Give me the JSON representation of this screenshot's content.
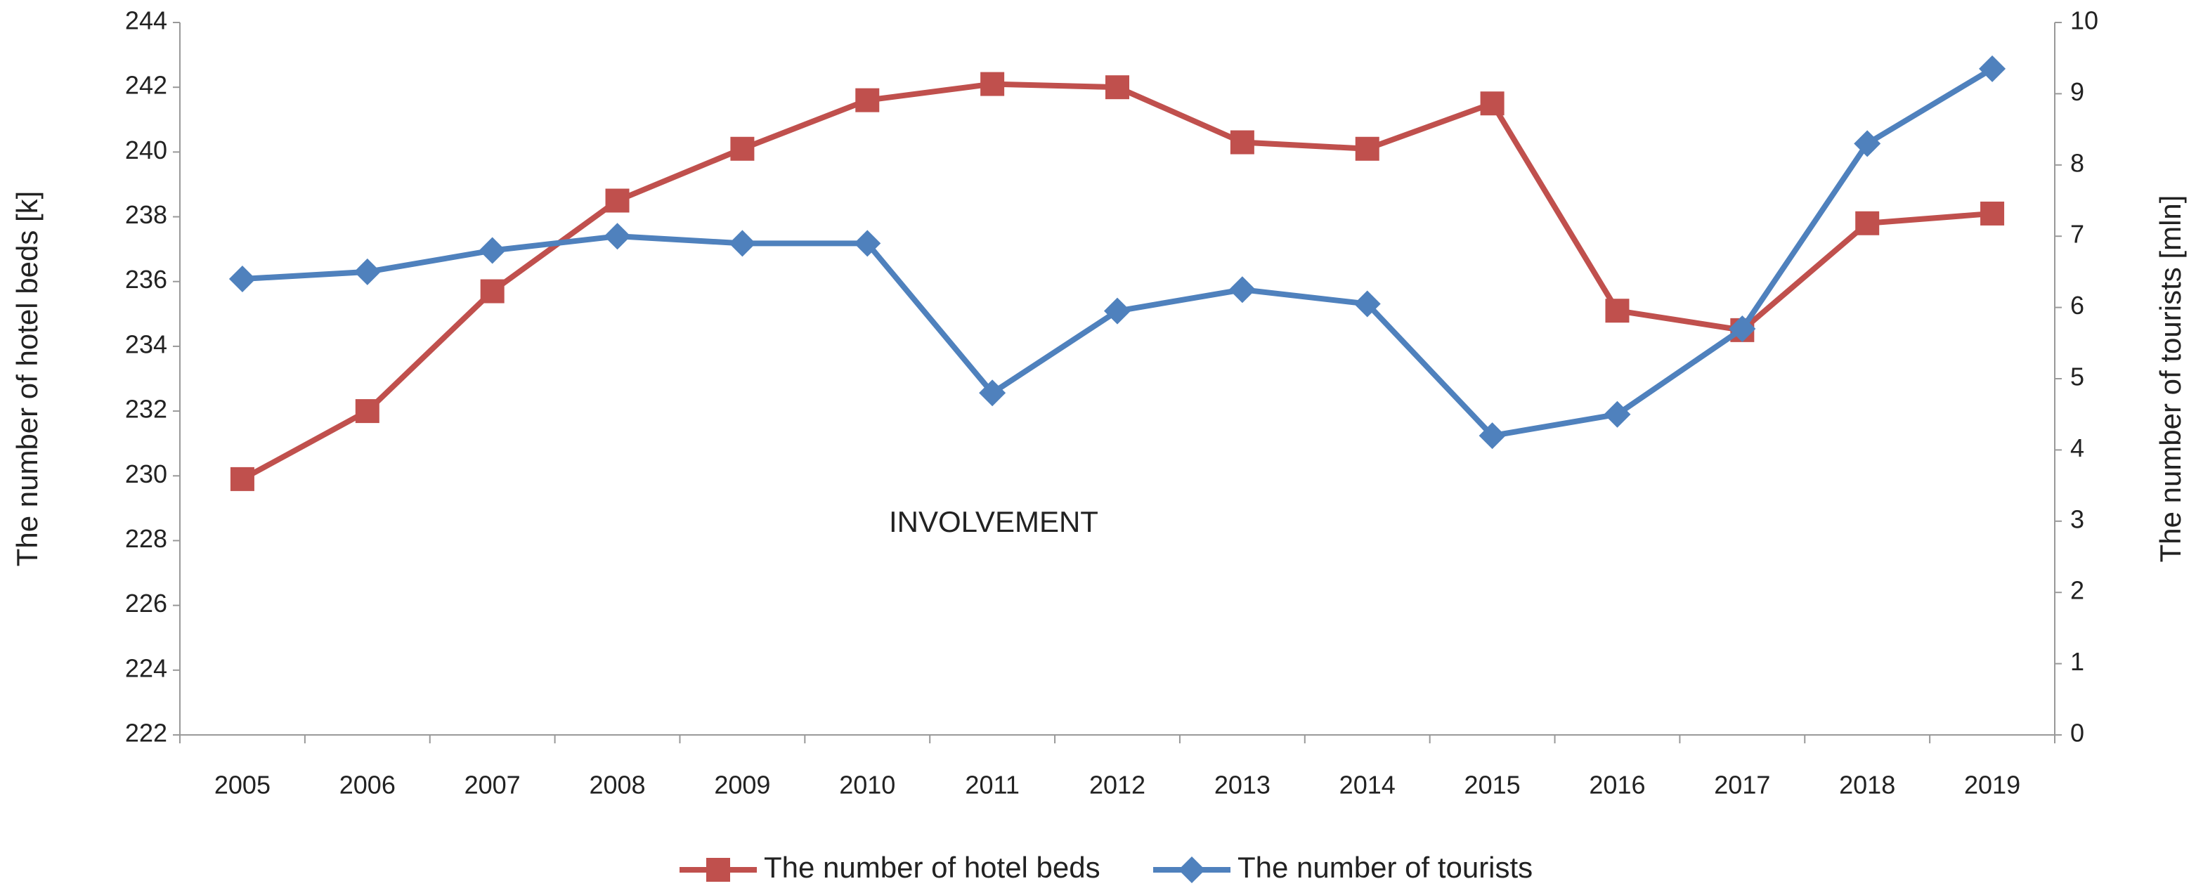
{
  "chart_data": {
    "type": "line",
    "annotation": "INVOLVEMENT",
    "y_label": "The number of hotel beds [k]",
    "y2_label": "The number of tourists [mln]",
    "categories": [
      "2005",
      "2006",
      "2007",
      "2008",
      "2009",
      "2010",
      "2011",
      "2012",
      "2013",
      "2014",
      "2015",
      "2016",
      "2017",
      "2018",
      "2019"
    ],
    "series": [
      {
        "name": "The number of hotel beds",
        "color": "#c0504d",
        "marker": "square",
        "axis": "y",
        "values": [
          229.9,
          232.0,
          235.7,
          238.5,
          240.1,
          241.6,
          242.1,
          242.0,
          240.3,
          240.1,
          241.5,
          235.1,
          234.5,
          237.8,
          238.1
        ]
      },
      {
        "name": "The number of tourists",
        "color": "#4f81bd",
        "marker": "diamond",
        "axis": "y2",
        "values": [
          6.4,
          6.5,
          6.8,
          7.0,
          6.9,
          6.9,
          4.8,
          5.95,
          6.25,
          6.05,
          4.2,
          4.5,
          5.7,
          8.3,
          9.35
        ]
      }
    ],
    "ylim": [
      222,
      244
    ],
    "yticks": [
      222,
      224,
      226,
      228,
      230,
      232,
      234,
      236,
      238,
      240,
      242,
      244
    ],
    "y2lim": [
      0,
      10
    ],
    "y2ticks": [
      0,
      1,
      2,
      3,
      4,
      5,
      6,
      7,
      8,
      9,
      10
    ],
    "grid": false,
    "legend": "bottom"
  }
}
